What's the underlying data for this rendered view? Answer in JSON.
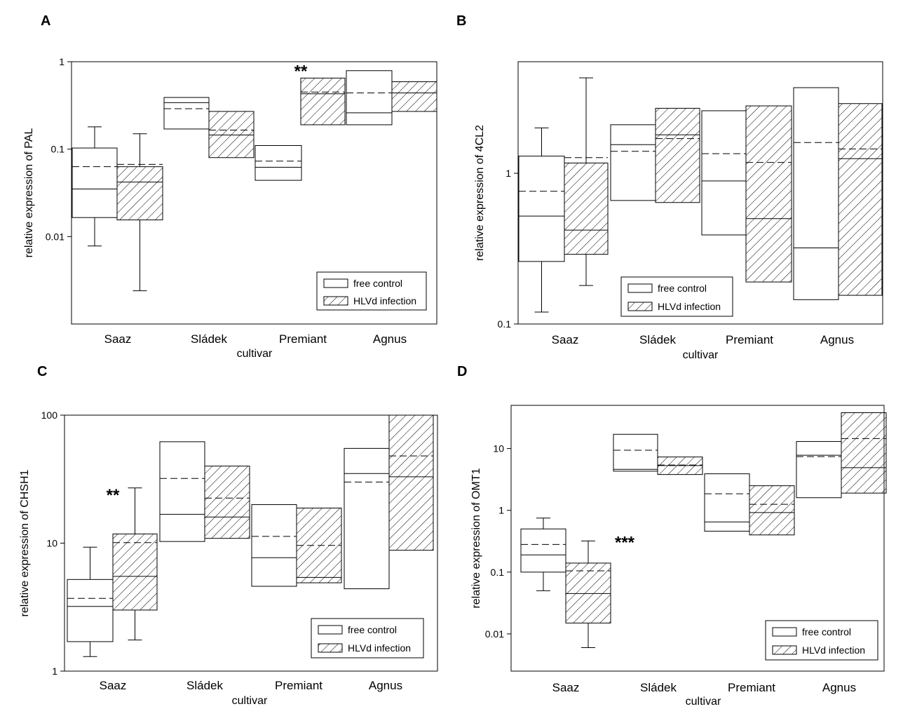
{
  "legend": {
    "control_label": "free control",
    "infected_label": "HLVd infection"
  },
  "chart_data": [
    {
      "panel": "A",
      "type": "box",
      "ylabel": "relative expression of PAL",
      "xlabel": "cultivar",
      "yscale": "log",
      "ylim": [
        0.001,
        1
      ],
      "yticks": [
        1,
        0.1,
        0.01
      ],
      "ytick_labels": [
        "1",
        "0.1",
        "0.01"
      ],
      "categories": [
        "Saaz",
        "Sládek",
        "Premiant",
        "Agnus"
      ],
      "series": [
        {
          "name": "free control",
          "pattern": "none",
          "boxes": [
            {
              "q1": 0.0165,
              "median": 0.035,
              "mean": 0.063,
              "q3": 0.103,
              "wlo": 0.0078,
              "whi": 0.18
            },
            {
              "q1": 0.17,
              "median": 0.34,
              "mean": 0.29,
              "q3": 0.39,
              "wlo": null,
              "whi": null
            },
            {
              "q1": 0.044,
              "median": 0.062,
              "mean": 0.073,
              "q3": 0.11,
              "wlo": null,
              "whi": null
            },
            {
              "q1": 0.19,
              "median": 0.26,
              "mean": 0.44,
              "q3": 0.79,
              "wlo": null,
              "whi": null
            }
          ]
        },
        {
          "name": "HLVd infection",
          "pattern": "hatch",
          "boxes": [
            {
              "q1": 0.0155,
              "median": 0.042,
              "mean": 0.067,
              "q3": 0.063,
              "wlo": 0.0024,
              "whi": 0.15
            },
            {
              "q1": 0.08,
              "median": 0.145,
              "mean": 0.165,
              "q3": 0.27,
              "wlo": null,
              "whi": null
            },
            {
              "q1": 0.19,
              "median": 0.43,
              "mean": 0.45,
              "q3": 0.65,
              "wlo": null,
              "whi": null
            },
            {
              "q1": 0.27,
              "median": 0.44,
              "mean": 0.44,
              "q3": 0.59,
              "wlo": null,
              "whi": null
            }
          ]
        }
      ],
      "significance": [
        {
          "category": "Premiant",
          "series": "HLVd infection",
          "label": "**"
        }
      ]
    },
    {
      "panel": "B",
      "type": "box",
      "ylabel": "relative expression of 4CL2",
      "xlabel": "cultivar",
      "yscale": "log",
      "ylim": [
        0.1,
        5.5
      ],
      "yticks": [
        1,
        0.1
      ],
      "ytick_labels": [
        "1",
        "0.1"
      ],
      "categories": [
        "Saaz",
        "Sládek",
        "Premiant",
        "Agnus"
      ],
      "series": [
        {
          "name": "free control",
          "pattern": "none",
          "boxes": [
            {
              "q1": 0.26,
              "median": 0.52,
              "mean": 0.76,
              "q3": 1.3,
              "wlo": 0.12,
              "whi": 2.0
            },
            {
              "q1": 0.66,
              "median": 1.55,
              "mean": 1.4,
              "q3": 2.1,
              "wlo": null,
              "whi": null
            },
            {
              "q1": 0.39,
              "median": 0.89,
              "mean": 1.35,
              "q3": 2.6,
              "wlo": null,
              "whi": null
            },
            {
              "q1": 0.145,
              "median": 0.32,
              "mean": 1.6,
              "q3": 3.7,
              "wlo": null,
              "whi": null
            }
          ]
        },
        {
          "name": "HLVd infection",
          "pattern": "hatch",
          "boxes": [
            {
              "q1": 0.29,
              "median": 0.42,
              "mean": 1.27,
              "q3": 1.17,
              "wlo": 0.18,
              "whi": 4.3
            },
            {
              "q1": 0.64,
              "median": 1.8,
              "mean": 1.7,
              "q3": 2.7,
              "wlo": null,
              "whi": null
            },
            {
              "q1": 0.19,
              "median": 0.5,
              "mean": 1.18,
              "q3": 2.8,
              "wlo": null,
              "whi": null
            },
            {
              "q1": 0.155,
              "median": 1.25,
              "mean": 1.45,
              "q3": 2.9,
              "wlo": null,
              "whi": null
            }
          ]
        }
      ],
      "significance": []
    },
    {
      "panel": "C",
      "type": "box",
      "ylabel": "relative expression of CHSH1",
      "xlabel": "cultivar",
      "yscale": "log",
      "ylim": [
        1,
        100
      ],
      "yticks": [
        100,
        10,
        1
      ],
      "ytick_labels": [
        "100",
        "10",
        "1"
      ],
      "categories": [
        "Saaz",
        "Sládek",
        "Premiant",
        "Agnus"
      ],
      "series": [
        {
          "name": "free control",
          "pattern": "none",
          "boxes": [
            {
              "q1": 1.7,
              "median": 3.2,
              "mean": 3.7,
              "q3": 5.2,
              "wlo": 1.3,
              "whi": 9.3
            },
            {
              "q1": 10.3,
              "median": 16.8,
              "mean": 32,
              "q3": 62,
              "wlo": null,
              "whi": null
            },
            {
              "q1": 4.6,
              "median": 7.7,
              "mean": 11.3,
              "q3": 20,
              "wlo": null,
              "whi": null
            },
            {
              "q1": 4.4,
              "median": 35,
              "mean": 30,
              "q3": 55,
              "wlo": null,
              "whi": null
            }
          ]
        },
        {
          "name": "HLVd infection",
          "pattern": "hatch",
          "boxes": [
            {
              "q1": 3.0,
              "median": 5.5,
              "mean": 10.1,
              "q3": 11.8,
              "wlo": 1.75,
              "whi": 27
            },
            {
              "q1": 10.9,
              "median": 16,
              "mean": 22.5,
              "q3": 40,
              "wlo": null,
              "whi": null
            },
            {
              "q1": 4.9,
              "median": 5.4,
              "mean": 9.6,
              "q3": 18.8,
              "wlo": null,
              "whi": null
            },
            {
              "q1": 8.8,
              "median": 33,
              "mean": 48,
              "q3": 100,
              "wlo": null,
              "whi": null
            }
          ]
        }
      ],
      "significance": [
        {
          "category": "Saaz",
          "series": "HLVd infection",
          "label": "**"
        }
      ]
    },
    {
      "panel": "D",
      "type": "box",
      "ylabel": "relative expression of OMT1",
      "xlabel": "cultivar",
      "yscale": "log",
      "ylim": [
        0.0025,
        50
      ],
      "yticks": [
        10,
        1,
        0.1,
        0.01
      ],
      "ytick_labels": [
        "10",
        "1",
        "0.1",
        "0.01"
      ],
      "categories": [
        "Saaz",
        "Sládek",
        "Premiant",
        "Agnus"
      ],
      "series": [
        {
          "name": "free control",
          "pattern": "none",
          "boxes": [
            {
              "q1": 0.1,
              "median": 0.19,
              "mean": 0.28,
              "q3": 0.5,
              "wlo": 0.05,
              "whi": 0.75
            },
            {
              "q1": 4.3,
              "median": 4.6,
              "mean": 9.4,
              "q3": 17,
              "wlo": null,
              "whi": null
            },
            {
              "q1": 0.46,
              "median": 0.65,
              "mean": 1.85,
              "q3": 3.9,
              "wlo": null,
              "whi": null
            },
            {
              "q1": 1.6,
              "median": 7.8,
              "mean": 7.4,
              "q3": 13,
              "wlo": null,
              "whi": null
            }
          ]
        },
        {
          "name": "HLVd infection",
          "pattern": "hatch",
          "boxes": [
            {
              "q1": 0.015,
              "median": 0.045,
              "mean": 0.105,
              "q3": 0.14,
              "wlo": 0.006,
              "whi": 0.32
            },
            {
              "q1": 3.8,
              "median": 5.3,
              "mean": 5.4,
              "q3": 7.3,
              "wlo": null,
              "whi": null
            },
            {
              "q1": 0.4,
              "median": 0.92,
              "mean": 1.25,
              "q3": 2.5,
              "wlo": null,
              "whi": null
            },
            {
              "q1": 1.9,
              "median": 4.9,
              "mean": 14.5,
              "q3": 38,
              "wlo": null,
              "whi": null
            }
          ]
        }
      ],
      "significance": [
        {
          "category": "Saaz",
          "series": "HLVd infection",
          "label": "***"
        }
      ]
    }
  ]
}
